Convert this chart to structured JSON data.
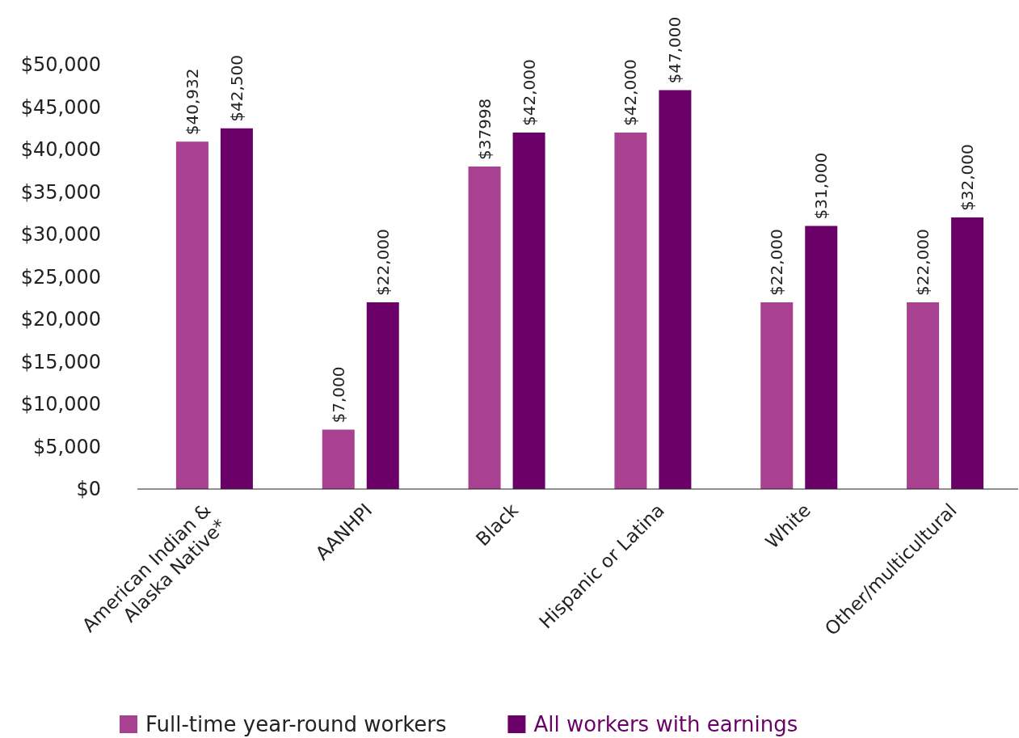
{
  "chart_data": {
    "type": "bar",
    "categories": [
      "American Indian & Alaska Native*",
      "AANHPI",
      "Black",
      "Hispanic or Latina",
      "White",
      "Other/multicultural"
    ],
    "series": [
      {
        "name": "Full-time year-round workers",
        "color": "#a8418f",
        "values": [
          40932,
          7000,
          37998,
          42000,
          22000,
          22000
        ],
        "value_labels": [
          "$40,932",
          "$7,000",
          "$37998",
          "$42,000",
          "$22,000",
          "$22,000"
        ]
      },
      {
        "name": "All workers with earnings",
        "color": "#6a0068",
        "values": [
          42500,
          22000,
          42000,
          47000,
          31000,
          32000
        ],
        "value_labels": [
          "$42,500",
          "$22,000",
          "$42,000",
          "$47,000",
          "$31,000",
          "$32,000"
        ]
      }
    ],
    "ylim": [
      0,
      50000
    ],
    "yticks": [
      {
        "value": 0,
        "label": "$0"
      },
      {
        "value": 5000,
        "label": "$5,000"
      },
      {
        "value": 10000,
        "label": "$10,000"
      },
      {
        "value": 15000,
        "label": "$15,000"
      },
      {
        "value": 20000,
        "label": "$20,000"
      },
      {
        "value": 25000,
        "label": "$25,000"
      },
      {
        "value": 30000,
        "label": "$30,000"
      },
      {
        "value": 35000,
        "label": "$35,000"
      },
      {
        "value": 40000,
        "label": "$40,000"
      },
      {
        "value": 45000,
        "label": "$45,000"
      },
      {
        "value": 50000,
        "label": "$50,000"
      }
    ],
    "grid": false,
    "legend": "bottom"
  }
}
